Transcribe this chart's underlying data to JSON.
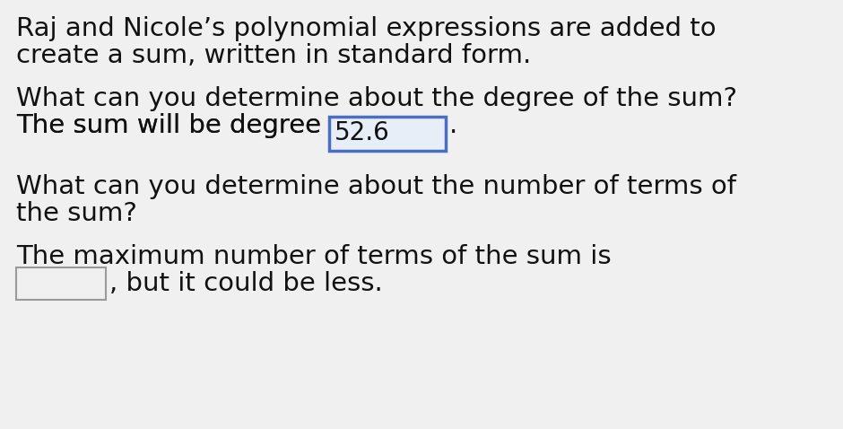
{
  "background_color": "#f0f0f0",
  "text_color": "#111111",
  "line1": "Raj and Nicole’s polynomial expressions are added to",
  "line2": "create a sum, written in standard form.",
  "line3": "What can you determine about the degree of the sum?",
  "line4_pre": "The sum will be degree ",
  "line4_box_text": "52.6",
  "line4_post": ".",
  "line6": "What can you determine about the number of terms of",
  "line7": "the sum?",
  "line8": "The maximum number of terms of the sum is",
  "line9_post": ", but it could be less.",
  "box1_border_color": "#4a6fc0",
  "box1_face_color": "#e8eef8",
  "box2_border_color": "#999999",
  "box2_face_color": "#f0f0f0",
  "font_size": 21,
  "fig_width": 9.4,
  "fig_height": 4.78,
  "dpi": 100
}
